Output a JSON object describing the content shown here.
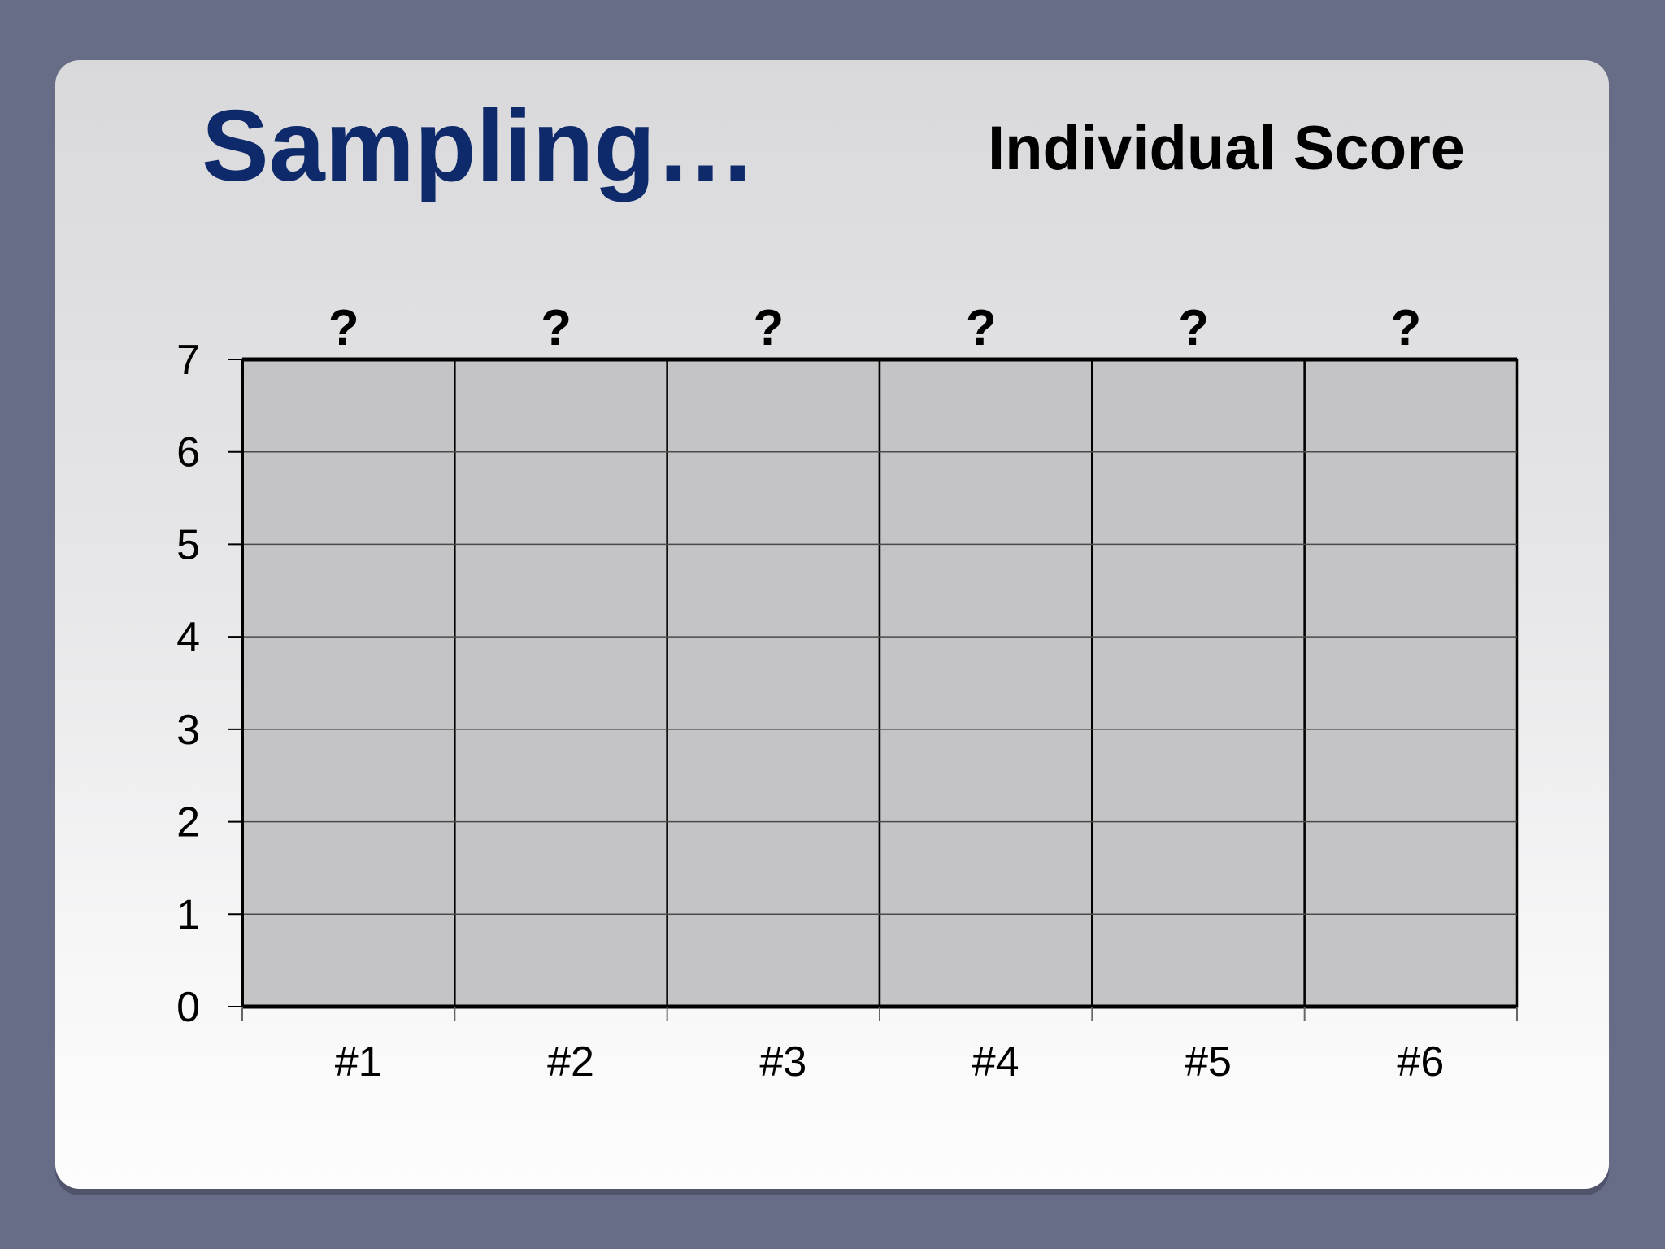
{
  "slide": {
    "title": "Sampling…",
    "subtitle": "Individual Score",
    "background_color": "#676c87",
    "title_color": "#0f2a6b"
  },
  "chart_data": {
    "type": "bar",
    "title": "",
    "xlabel": "",
    "ylabel": "",
    "categories": [
      "#1",
      "#2",
      "#3",
      "#4",
      "#5",
      "#6"
    ],
    "values": [
      7,
      7,
      7,
      7,
      7,
      7
    ],
    "data_labels": [
      "?",
      "?",
      "?",
      "?",
      "?",
      "?"
    ],
    "ylim": [
      0,
      7
    ],
    "yticks": [
      "0",
      "1",
      "2",
      "3",
      "4",
      "5",
      "6",
      "7"
    ],
    "grid": true,
    "bar_color": "#c4c3c6",
    "legend": "none"
  }
}
